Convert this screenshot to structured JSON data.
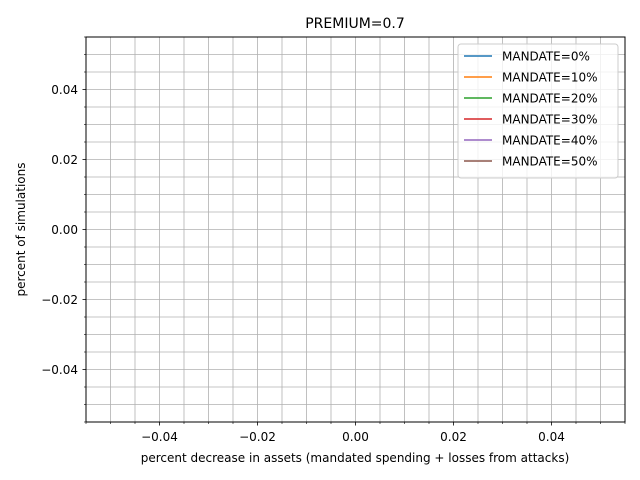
{
  "chart_data": {
    "type": "line",
    "title": "PREMIUM=0.7",
    "xlabel": "percent decrease in assets (mandated spending + losses from attacks)",
    "ylabel": "percent of simulations",
    "xlim": [
      -0.055,
      0.055
    ],
    "ylim": [
      -0.055,
      0.055
    ],
    "x_ticks": [
      -0.04,
      -0.02,
      0.0,
      0.02,
      0.04
    ],
    "x_tick_labels": [
      "−0.04",
      "−0.02",
      "0.00",
      "0.02",
      "0.04"
    ],
    "y_ticks": [
      -0.04,
      -0.02,
      0.0,
      0.02,
      0.04
    ],
    "y_tick_labels": [
      "−0.04",
      "−0.02",
      "0.00",
      "0.02",
      "0.04"
    ],
    "minor_step": 0.005,
    "grid": true,
    "legend_position": "top-right",
    "series": [
      {
        "name": "MANDATE=0%",
        "color": "#1f77b4",
        "x": [],
        "y": []
      },
      {
        "name": "MANDATE=10%",
        "color": "#ff7f0e",
        "x": [],
        "y": []
      },
      {
        "name": "MANDATE=20%",
        "color": "#2ca02c",
        "x": [],
        "y": []
      },
      {
        "name": "MANDATE=30%",
        "color": "#d62728",
        "x": [],
        "y": []
      },
      {
        "name": "MANDATE=40%",
        "color": "#9467bd",
        "x": [],
        "y": []
      },
      {
        "name": "MANDATE=50%",
        "color": "#8c564b",
        "x": [],
        "y": []
      }
    ]
  }
}
